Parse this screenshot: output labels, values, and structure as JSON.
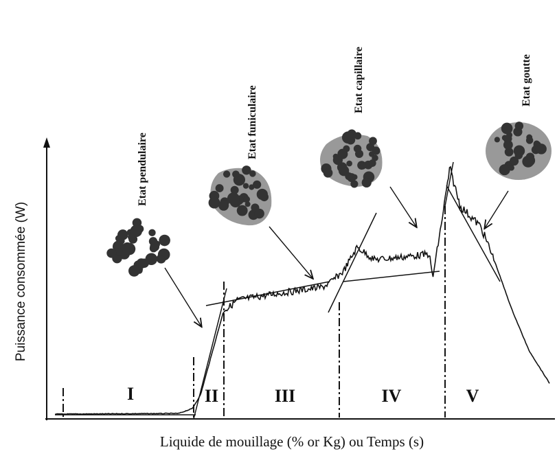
{
  "axes": {
    "y_label": "Puissance consommée (W)",
    "x_label": "Liquide de mouillage (% or Kg) ou Temps (s)"
  },
  "states": [
    {
      "label": "Etat pendulaire"
    },
    {
      "label": "Etat funiculaire"
    },
    {
      "label": "Etat capillaire"
    },
    {
      "label": "Etat goutte"
    }
  ],
  "regions": [
    "I",
    "II",
    "III",
    "IV",
    "V"
  ]
}
